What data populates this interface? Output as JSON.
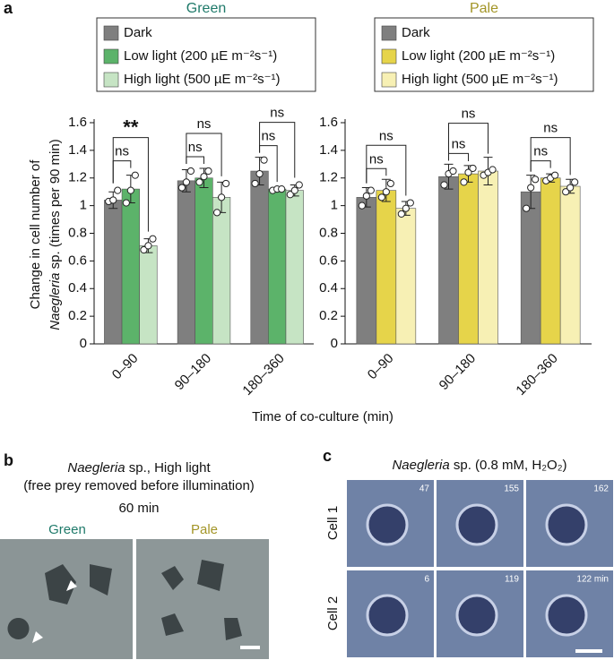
{
  "chart_data": [
    {
      "type": "bar",
      "title": "Green",
      "title_color": "#1f7a6a",
      "categories": [
        "0–90",
        "90–180",
        "180–360"
      ],
      "ylim": [
        0,
        1.6
      ],
      "yticks": [
        0,
        0.2,
        0.4,
        0.6,
        0.8,
        1.0,
        1.2,
        1.4,
        1.6
      ],
      "series": [
        {
          "name": "Dark",
          "color": "#7f7f7f",
          "values": [
            1.04,
            1.18,
            1.25
          ],
          "errors": [
            0.06,
            0.08,
            0.1
          ],
          "points": [
            [
              1.03,
              1.04,
              1.11
            ],
            [
              1.13,
              1.17,
              1.25
            ],
            [
              1.16,
              1.23,
              1.33
            ]
          ]
        },
        {
          "name": "Low light  (200 µE m⁻²s⁻¹)",
          "color": "#5cb36a",
          "values": [
            1.12,
            1.2,
            1.12
          ],
          "errors": [
            0.1,
            0.07,
            0.01
          ],
          "points": [
            [
              1.02,
              1.11,
              1.22
            ],
            [
              1.17,
              1.21,
              1.25
            ],
            [
              1.11,
              1.12,
              1.12
            ]
          ]
        },
        {
          "name": "High light (500 µE m⁻²s⁻¹)",
          "color": "#c6e4c4",
          "values": [
            0.71,
            1.06,
            1.11
          ],
          "errors": [
            0.05,
            0.11,
            0.04
          ],
          "points": [
            [
              0.68,
              0.71,
              0.76
            ],
            [
              0.95,
              1.06,
              1.16
            ],
            [
              1.08,
              1.11,
              1.15
            ]
          ]
        }
      ],
      "significance": [
        [
          "ns",
          "**"
        ],
        [
          "ns",
          "ns"
        ],
        [
          "ns",
          "ns"
        ]
      ]
    },
    {
      "type": "bar",
      "title": "Pale",
      "title_color": "#a39527",
      "categories": [
        "0–90",
        "90–180",
        "180–360"
      ],
      "ylim": [
        0,
        1.6
      ],
      "yticks": [
        0,
        0.2,
        0.4,
        0.6,
        0.8,
        1.0,
        1.2,
        1.4,
        1.6
      ],
      "series": [
        {
          "name": "Dark",
          "color": "#7f7f7f",
          "values": [
            1.06,
            1.21,
            1.1
          ],
          "errors": [
            0.07,
            0.09,
            0.12
          ],
          "points": [
            [
              1.0,
              1.07,
              1.11
            ],
            [
              1.15,
              1.23,
              1.25
            ],
            [
              0.98,
              1.13,
              1.19
            ]
          ]
        },
        {
          "name": "Low light  (200 µE m⁻²s⁻¹)",
          "color": "#e6d44a",
          "values": [
            1.11,
            1.23,
            1.2
          ],
          "errors": [
            0.08,
            0.06,
            0.03
          ],
          "points": [
            [
              1.06,
              1.1,
              1.16
            ],
            [
              1.17,
              1.24,
              1.27
            ],
            [
              1.18,
              1.2,
              1.22
            ]
          ]
        },
        {
          "name": "High light (500 µE m⁻²s⁻¹)",
          "color": "#f7f0b4",
          "values": [
            0.98,
            1.25,
            1.14
          ],
          "errors": [
            0.05,
            0.1,
            0.05
          ],
          "points": [
            [
              0.94,
              0.98,
              1.02
            ],
            [
              1.22,
              1.24,
              1.26
            ],
            [
              1.1,
              1.13,
              1.17
            ]
          ]
        }
      ],
      "significance": [
        [
          "ns",
          "ns"
        ],
        [
          "ns",
          "ns"
        ],
        [
          "ns",
          "ns"
        ]
      ]
    }
  ],
  "panel_a": {
    "label": "a",
    "ylabel_line1": "Change in cell number of",
    "ylabel_italic": "Naegleria",
    "ylabel_rest": " sp. (times per 90 min)",
    "xlabel": "Time of co-culture (min)"
  },
  "panel_b": {
    "label": "b",
    "title_italic": "Naegleria",
    "title_rest": " sp., High light",
    "subtitle": "(free prey removed before illumination)",
    "time": "60 min",
    "left": "Green",
    "right": "Pale"
  },
  "panel_c": {
    "label": "c",
    "title_italic": "Naegleria",
    "title_rest": " sp. (0.8 mM, H₂O₂)",
    "rows": [
      "Cell 1",
      "Cell 2"
    ],
    "frames": [
      [
        "47",
        "155",
        "162"
      ],
      [
        "6",
        "119",
        "122 min"
      ]
    ]
  }
}
